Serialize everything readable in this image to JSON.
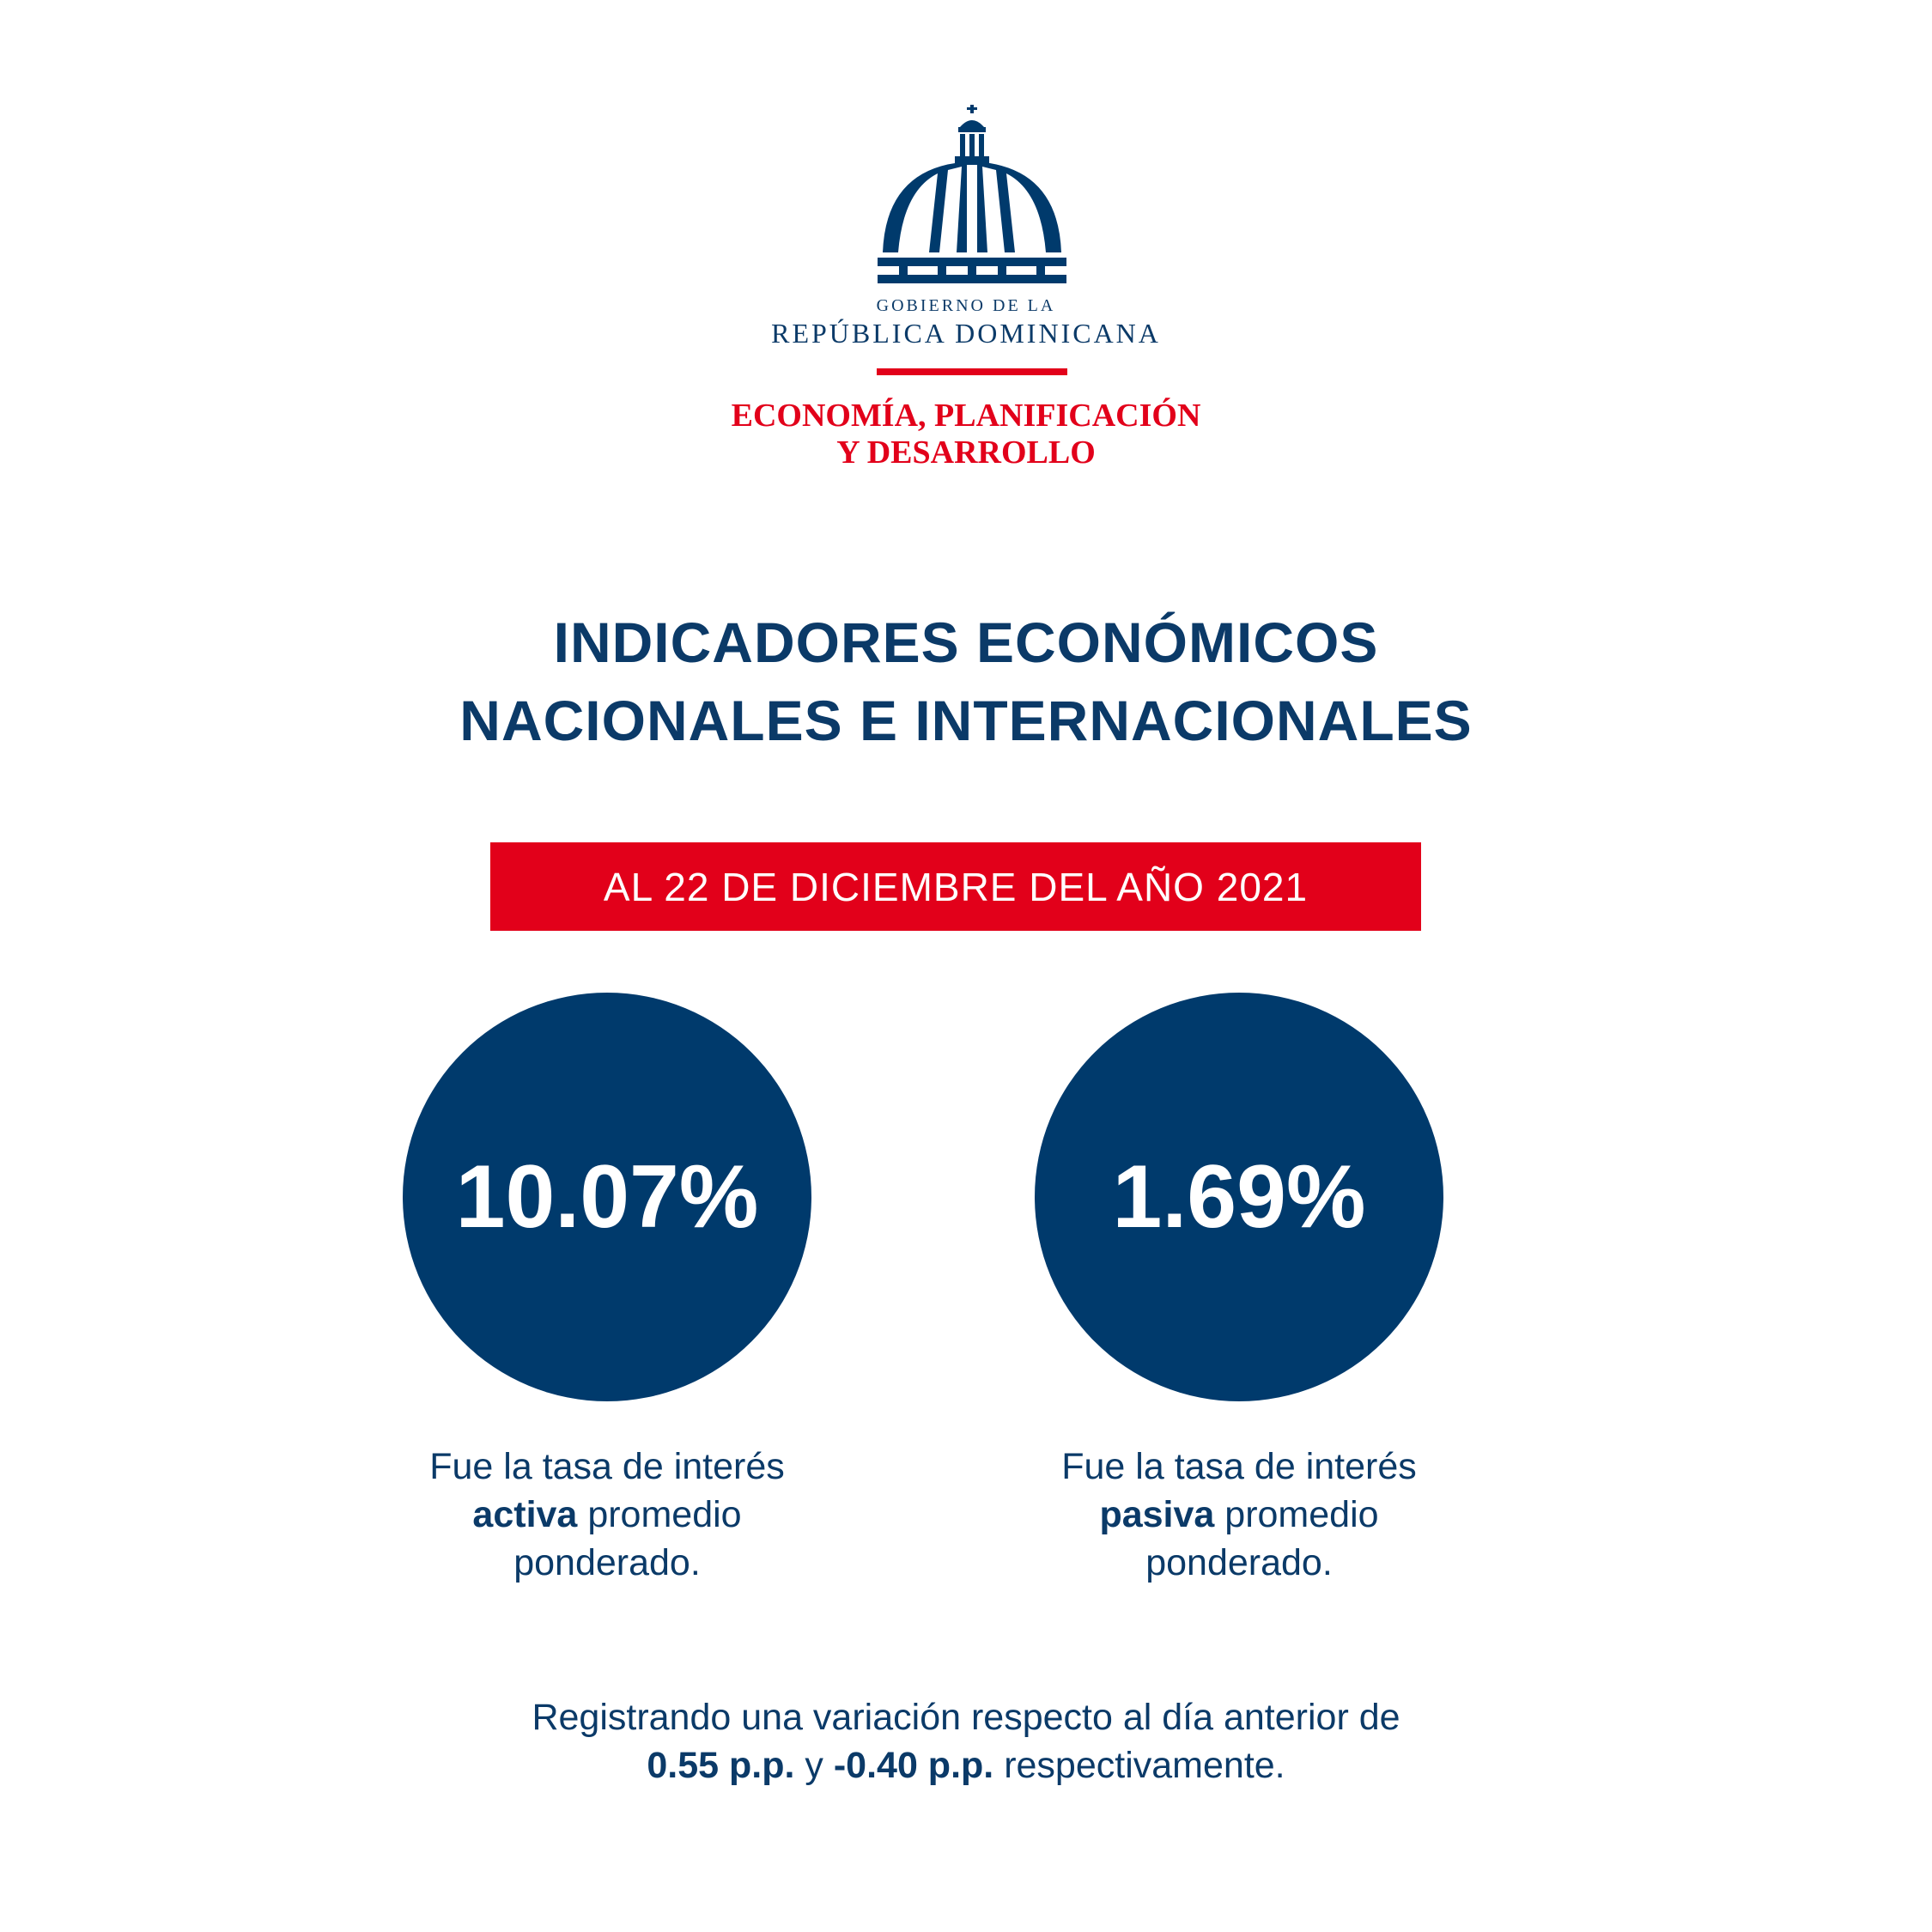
{
  "header": {
    "org_top": "GOBIERNO DE LA",
    "org_name": "REPÚBLICA DOMINICANA",
    "ministry_lines": [
      "ECONOMÍA, PLANIFICACIÓN",
      "Y DESARROLLO"
    ]
  },
  "title_lines": [
    "INDICADORES ECONÓMICOS",
    "NACIONALES E INTERNACIONALES"
  ],
  "date_banner": "AL 22 DE DICIEMBRE DEL AÑO 2021",
  "indicators": [
    {
      "value": "10.07%",
      "caption": {
        "line1": "Fue la tasa de interés",
        "bold": "activa",
        "rest": "promedio",
        "line3": "ponderado."
      }
    },
    {
      "value": "1.69%",
      "caption": {
        "line1": "Fue la tasa de interés",
        "bold": "pasiva",
        "rest": "promedio",
        "line3": "ponderado."
      }
    }
  ],
  "footer": {
    "line1": "Registrando una variación respecto al día anterior de",
    "bold1": "0.55 p.p.",
    "conj": "y",
    "bold2": "-0.40 p.p.",
    "rest": "respectivamente."
  }
}
